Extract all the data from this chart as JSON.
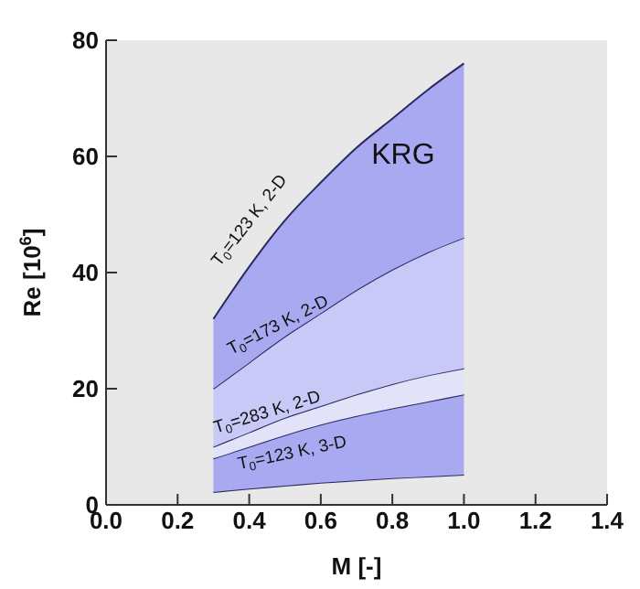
{
  "chart_data": {
    "type": "area",
    "xlabel": "M  [-]",
    "ylabel": "Re [10$^{6}$]",
    "x": [
      0.3,
      0.4,
      0.5,
      0.6,
      0.7,
      0.8,
      0.9,
      1.0
    ],
    "xlim": [
      0,
      1.4
    ],
    "xticks": [
      {
        "value": 0,
        "label": "0.0"
      },
      0.2,
      0.4,
      0.6,
      0.8,
      {
        "value": 1,
        "label": "1.0"
      },
      1.2,
      1.4
    ],
    "ylim": [
      0,
      80
    ],
    "yticks": [
      0,
      20,
      40,
      60,
      80
    ],
    "stacked": true,
    "series": [
      {
        "color": "#e8e8e8",
        "values": [
          2.2,
          2.8,
          3.3,
          3.8,
          4.2,
          4.6,
          4.9,
          5.2
        ]
      },
      {
        "color": "#a9a9f2",
        "values": [
          5.8,
          7.2,
          8.7,
          10,
          11.1,
          12,
          12.9,
          13.8
        ]
      },
      {
        "color": "#e2e2f8",
        "values": [
          2,
          2.5,
          3,
          3.2,
          3.7,
          4.2,
          4.5,
          4.5
        ]
      },
      {
        "color": "#c9c9f8",
        "values": [
          10,
          12,
          14,
          16,
          18,
          19.7,
          21.2,
          22.5
        ]
      },
      {
        "color": "#a9a9f2",
        "values": [
          12,
          16.5,
          20,
          22.5,
          24.5,
          26,
          28,
          30
        ]
      }
    ],
    "annotations": [
      "T$_{0}$=123 K, 2-D",
      "T$_{0}$=173 K, 2-D",
      "T$_{0}$=283 K, 2-D",
      "T$_{0}$=123 K, 3-D",
      "KRG"
    ]
  }
}
